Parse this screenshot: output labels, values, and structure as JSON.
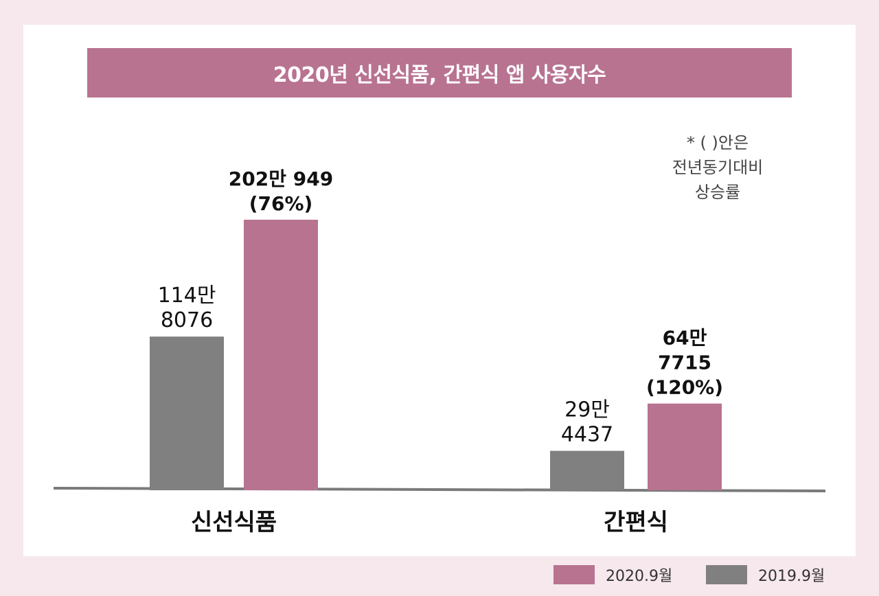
{
  "colors": {
    "background": "#f7e8ee",
    "panel": "#ffffff",
    "accent": "#b87391",
    "gray": "#808080",
    "baseline": "#7a7a7a"
  },
  "title": "2020년 신선식품, 간편식 앱 사용자수",
  "note": [
    "* ( )안은",
    "전년동기대비",
    "상승률"
  ],
  "legend": [
    {
      "label": "2020.9월",
      "color": "#b87391"
    },
    {
      "label": "2019.9월",
      "color": "#808080"
    }
  ],
  "chart_data": {
    "type": "bar",
    "title": "2020년 신선식품, 간편식 앱 사용자수",
    "categories": [
      "신선식품",
      "간편식"
    ],
    "series": [
      {
        "name": "2019.9월",
        "color": "#808080",
        "values": [
          1148076,
          294437
        ],
        "labels": [
          [
            "114만",
            "8076"
          ],
          [
            "29만",
            "4437"
          ]
        ]
      },
      {
        "name": "2020.9월",
        "color": "#b87391",
        "values": [
          2020949,
          647715
        ],
        "labels": [
          [
            "202만 949",
            "(76%)"
          ],
          [
            "64만",
            "7715",
            "(120%)"
          ]
        ]
      }
    ],
    "ylim": [
      0,
      2020949
    ],
    "grid": false,
    "legend_position": "bottom-right"
  }
}
